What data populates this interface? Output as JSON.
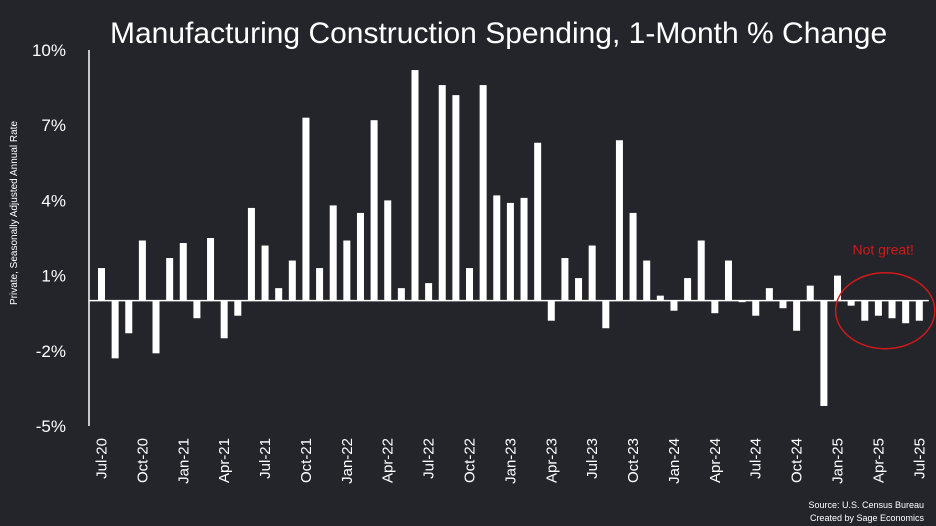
{
  "colors": {
    "background": "#23252b",
    "bar": "#ffffff",
    "axis": "#ffffff",
    "text": "#ffffff",
    "annotation": "#d01a1a"
  },
  "chart_data": {
    "type": "bar",
    "title": "Manufacturing Construction Spending, 1-Month % Change",
    "ylabel": "Private, Seasonally Adjusted Annual Rate",
    "xlabel": "",
    "ylim": [
      -5,
      10
    ],
    "yticks": [
      "10%",
      "7%",
      "4%",
      "1%",
      "-2%",
      "-5%"
    ],
    "ytick_values": [
      10,
      7,
      4,
      1,
      -2,
      -5
    ],
    "grid": false,
    "x_tick_labels": [
      "Jul-20",
      "Oct-20",
      "Jan-21",
      "Apr-21",
      "Jul-21",
      "Oct-21",
      "Jan-22",
      "Apr-22",
      "Jul-22",
      "Oct-22",
      "Jan-23",
      "Apr-23",
      "Jul-23",
      "Oct-23",
      "Jan-24",
      "Apr-24",
      "Jul-24",
      "Oct-24",
      "Jan-25",
      "Apr-25",
      "Jul-25"
    ],
    "categories": [
      "Jul-20",
      "Aug-20",
      "Sep-20",
      "Oct-20",
      "Nov-20",
      "Dec-20",
      "Jan-21",
      "Feb-21",
      "Mar-21",
      "Apr-21",
      "May-21",
      "Jun-21",
      "Jul-21",
      "Aug-21",
      "Sep-21",
      "Oct-21",
      "Nov-21",
      "Dec-21",
      "Jan-22",
      "Feb-22",
      "Mar-22",
      "Apr-22",
      "May-22",
      "Jun-22",
      "Jul-22",
      "Aug-22",
      "Sep-22",
      "Oct-22",
      "Nov-22",
      "Dec-22",
      "Jan-23",
      "Feb-23",
      "Mar-23",
      "Apr-23",
      "May-23",
      "Jun-23",
      "Jul-23",
      "Aug-23",
      "Sep-23",
      "Oct-23",
      "Nov-23",
      "Dec-23",
      "Jan-24",
      "Feb-24",
      "Mar-24",
      "Apr-24",
      "May-24",
      "Jun-24",
      "Jul-24",
      "Aug-24",
      "Sep-24",
      "Oct-24",
      "Nov-24",
      "Dec-24",
      "Jan-25",
      "Feb-25",
      "Mar-25",
      "Apr-25",
      "May-25",
      "Jun-25",
      "Jul-25"
    ],
    "values": [
      1.3,
      -2.3,
      -1.3,
      2.4,
      -2.1,
      1.7,
      2.3,
      -0.7,
      2.5,
      -1.5,
      -0.6,
      3.7,
      2.2,
      0.5,
      1.6,
      7.3,
      1.3,
      3.8,
      2.4,
      3.5,
      7.2,
      4.0,
      0.5,
      9.2,
      0.7,
      8.6,
      8.2,
      1.3,
      8.6,
      4.2,
      3.9,
      4.1,
      6.3,
      -0.8,
      1.7,
      0.9,
      2.2,
      -1.1,
      6.4,
      3.5,
      1.6,
      0.2,
      -0.4,
      0.9,
      2.4,
      -0.5,
      1.6,
      0.0,
      -0.6,
      0.5,
      -0.3,
      -1.2,
      0.6,
      -4.2,
      1.0,
      -0.2,
      -0.8,
      -0.6,
      -0.7,
      -0.9,
      -0.8
    ],
    "annotation": {
      "text": "Not great!",
      "covers": [
        "Feb-25",
        "Jul-25"
      ]
    },
    "source_lines": [
      "Source: U.S. Census Bureau",
      "Created by Sage Economics"
    ]
  }
}
